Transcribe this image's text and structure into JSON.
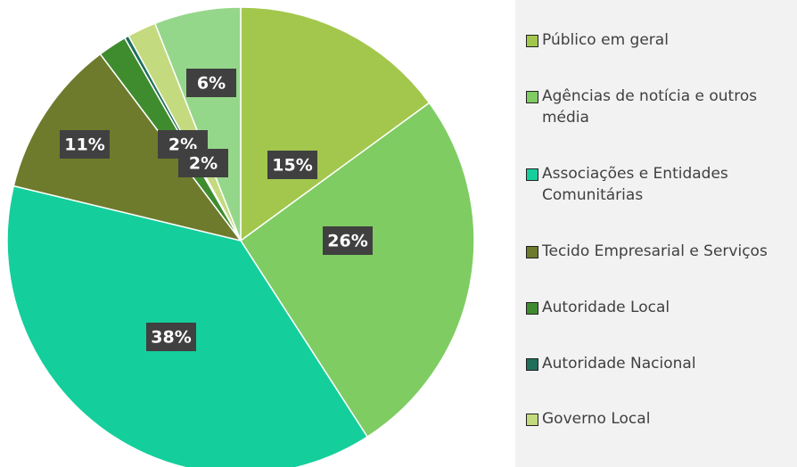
{
  "chart_data": {
    "type": "pie",
    "categories": [
      "Público em geral",
      "Agências de notícia e outros média",
      "Associações e Entidades Comunitárias",
      "Tecido Empresarial e Serviços",
      "Autoridade Local",
      "Autoridade Nacional",
      "Governo Local",
      null
    ],
    "values": [
      15,
      26,
      38,
      11,
      2,
      0.3,
      2,
      6
    ],
    "value_labels": [
      "15%",
      "26%",
      "38%",
      "11%",
      "2%",
      null,
      "2%",
      "6%"
    ],
    "colors": [
      "#a3c74c",
      "#7fcc63",
      "#14cf9b",
      "#6e7b2c",
      "#3f8c2f",
      "#1f6f5b",
      "#c4da7e",
      "#95d78a"
    ]
  }
}
